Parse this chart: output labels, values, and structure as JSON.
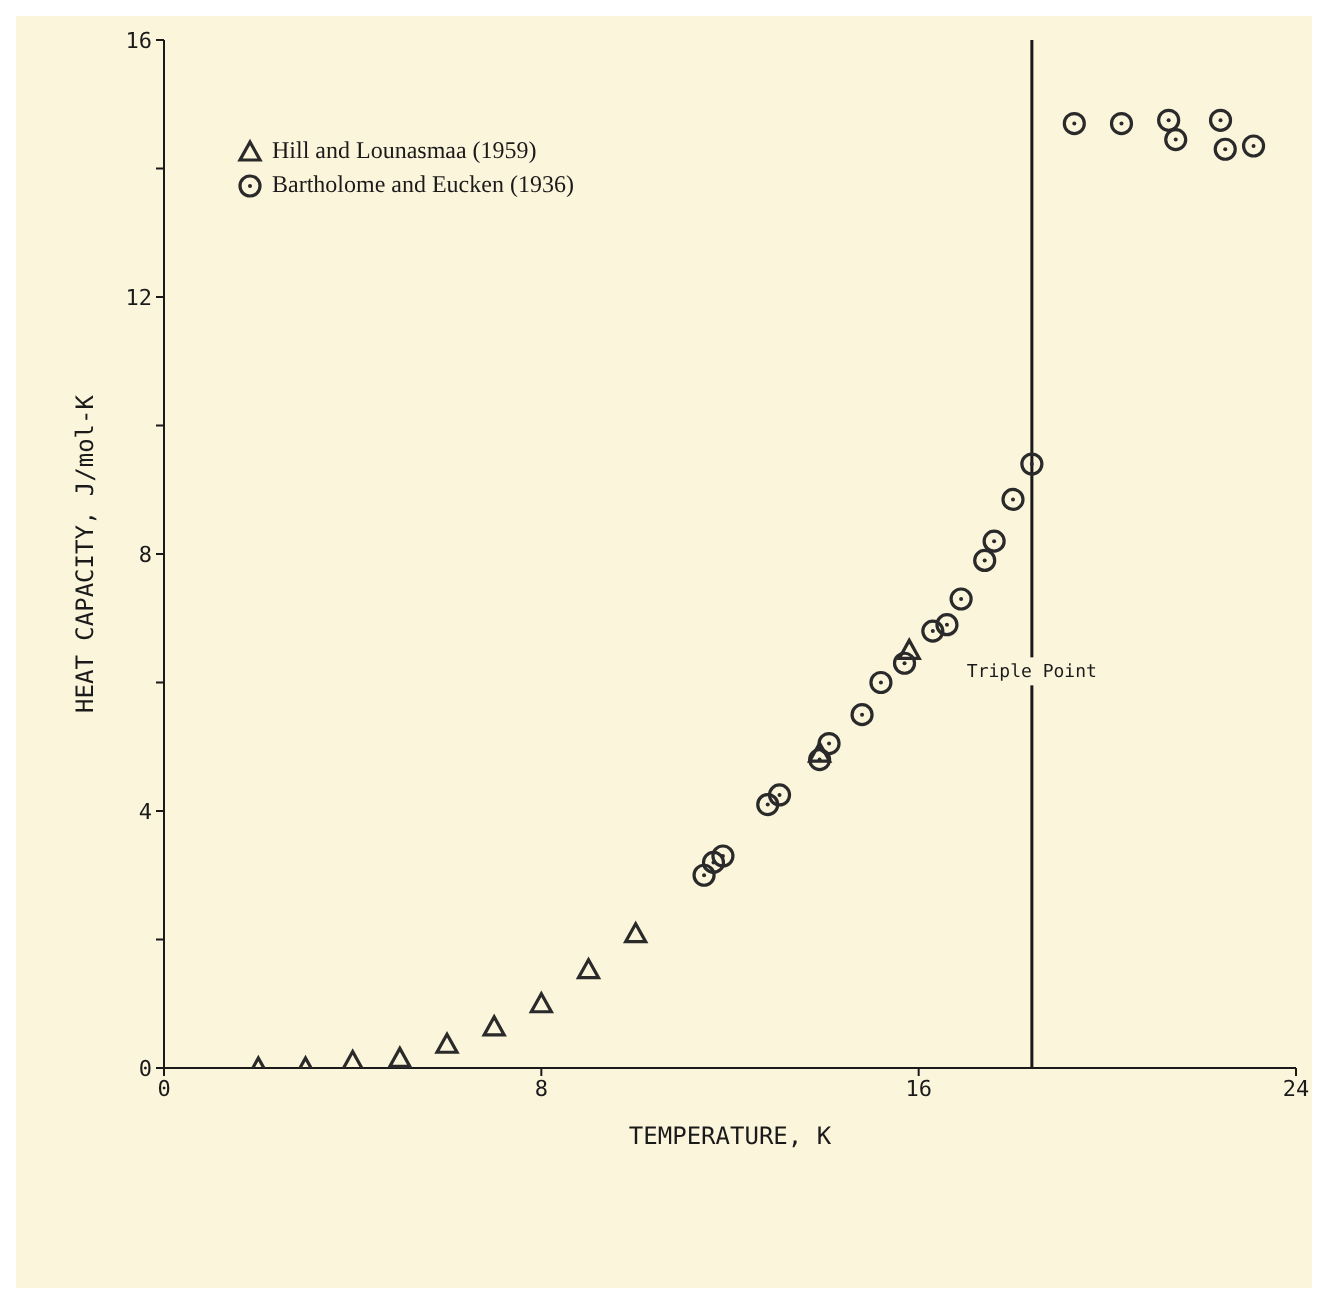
{
  "chart_data": {
    "type": "scatter",
    "xlabel": "TEMPERATURE, K",
    "ylabel": "HEAT CAPACITY, J/mol-K",
    "xlim": [
      0,
      24
    ],
    "xticks": [
      0,
      8,
      16,
      24
    ],
    "ylim": [
      0,
      16
    ],
    "yticks": [
      0,
      {
        "value": 2,
        "label": null
      },
      4,
      {
        "value": 6,
        "label": null
      },
      8,
      {
        "value": 10,
        "label": null
      },
      12,
      {
        "value": 14,
        "label": null
      },
      16
    ],
    "grid": false,
    "legend": "top left",
    "series": [
      {
        "name": "Hill and Lounasmaa (1959)",
        "color": "#2a2a2a",
        "marker": "triangle",
        "x": [
          2,
          3,
          4,
          5,
          6,
          7,
          8,
          9,
          10,
          13.9,
          15.8
        ],
        "values": [
          0,
          0,
          0.1,
          0.15,
          0.37,
          0.64,
          1.0,
          1.53,
          2.09,
          4.9,
          6.5
        ]
      },
      {
        "name": "Bartholome and Eucken (1936)",
        "color": "#2a2a2a",
        "marker": "circle",
        "x": [
          11.45,
          11.65,
          11.85,
          12.8,
          13.05,
          13.9,
          14.1,
          14.8,
          15.2,
          15.7,
          16.3,
          16.6,
          16.9,
          17.4,
          17.6,
          18.0,
          18.4,
          19.3,
          20.3,
          21.3,
          21.45,
          22.4,
          22.5,
          23.1
        ],
        "values": [
          3.0,
          3.2,
          3.3,
          4.1,
          4.25,
          4.8,
          5.05,
          5.5,
          6.0,
          6.3,
          6.8,
          6.9,
          7.3,
          7.9,
          8.2,
          8.85,
          9.4,
          14.7,
          14.7,
          14.75,
          14.45,
          14.75,
          14.3,
          14.35
        ]
      }
    ],
    "ref_lines": [
      {
        "axis": "x",
        "value": 18.4,
        "label": "Triple Point",
        "color": "#1a1a1a"
      }
    ]
  }
}
